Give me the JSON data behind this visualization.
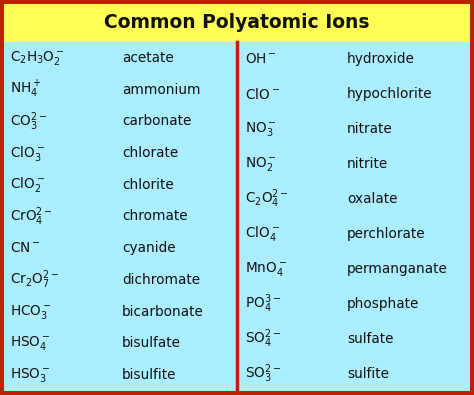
{
  "title": "Common Polyatomic Ions",
  "title_bg": "#FFFF55",
  "table_bg": "#AAEEFF",
  "border_color": "#BB2200",
  "text_color": "#111111",
  "left_names": [
    "acetate",
    "ammonium",
    "carbonate",
    "chlorate",
    "chlorite",
    "chromate",
    "cyanide",
    "dichromate",
    "bicarbonate",
    "bisulfate",
    "bisulfite"
  ],
  "right_names": [
    "hydroxide",
    "hypochlorite",
    "nitrate",
    "nitrite",
    "oxalate",
    "perchlorate",
    "permanganate",
    "phosphate",
    "sulfate",
    "sulfite"
  ]
}
